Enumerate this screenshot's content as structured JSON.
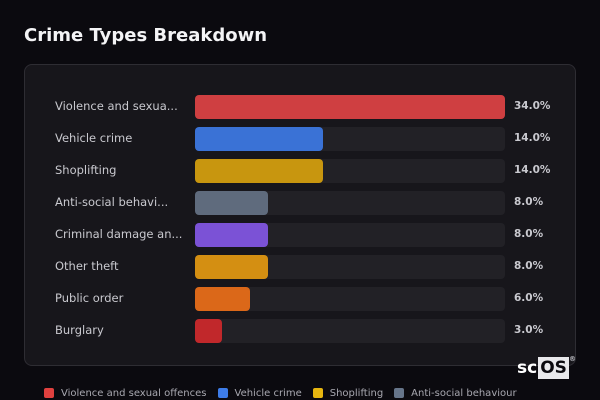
{
  "title": "Crime Types Breakdown",
  "chart_data": {
    "type": "bar",
    "orientation": "horizontal",
    "title": "Crime Types Breakdown",
    "xlabel": "",
    "ylabel": "",
    "categories": [
      "Violence and sexual offences",
      "Vehicle crime",
      "Shoplifting",
      "Anti-social behaviour",
      "Criminal damage and arson",
      "Other theft",
      "Public order",
      "Burglary"
    ],
    "display_labels": [
      "Violence and sexua...",
      "Vehicle crime",
      "Shoplifting",
      "Anti-social behavi...",
      "Criminal damage an...",
      "Other theft",
      "Public order",
      "Burglary"
    ],
    "values": [
      34.0,
      14.0,
      14.0,
      8.0,
      8.0,
      8.0,
      6.0,
      3.0
    ],
    "value_labels": [
      "34.0%",
      "14.0%",
      "14.0%",
      "8.0%",
      "8.0%",
      "8.0%",
      "6.0%",
      "3.0%"
    ],
    "colors": [
      "#cf3f41",
      "#3a72d6",
      "#c8960f",
      "#5f6b7d",
      "#7b52d6",
      "#d48f12",
      "#db6819",
      "#c1282b"
    ],
    "unit": "%",
    "xlim": [
      0,
      34
    ],
    "grid": false,
    "legend_position": "bottom"
  },
  "rows": [
    {
      "label": "Violence and sexua...",
      "value": "34.0%",
      "pct": 34.0,
      "color": "#cf3f41"
    },
    {
      "label": "Vehicle crime",
      "value": "14.0%",
      "pct": 14.0,
      "color": "#3a72d6"
    },
    {
      "label": "Shoplifting",
      "value": "14.0%",
      "pct": 14.0,
      "color": "#c8960f"
    },
    {
      "label": "Anti-social behavi...",
      "value": "8.0%",
      "pct": 8.0,
      "color": "#5f6b7d"
    },
    {
      "label": "Criminal damage an...",
      "value": "8.0%",
      "pct": 8.0,
      "color": "#7b52d6"
    },
    {
      "label": "Other theft",
      "value": "8.0%",
      "pct": 8.0,
      "color": "#d48f12"
    },
    {
      "label": "Public order",
      "value": "6.0%",
      "pct": 6.0,
      "color": "#db6819"
    },
    {
      "label": "Burglary",
      "value": "3.0%",
      "pct": 3.0,
      "color": "#c1282b"
    }
  ],
  "legend": [
    {
      "label": "Violence and sexual offences",
      "color": "#e0413f"
    },
    {
      "label": "Vehicle crime",
      "color": "#3d7ce8"
    },
    {
      "label": "Shoplifting",
      "color": "#e7b610"
    },
    {
      "label": "Anti-social behaviour",
      "color": "#66758a"
    }
  ],
  "logo": {
    "part1": "sc",
    "part2": "OS",
    "mark": "®"
  }
}
